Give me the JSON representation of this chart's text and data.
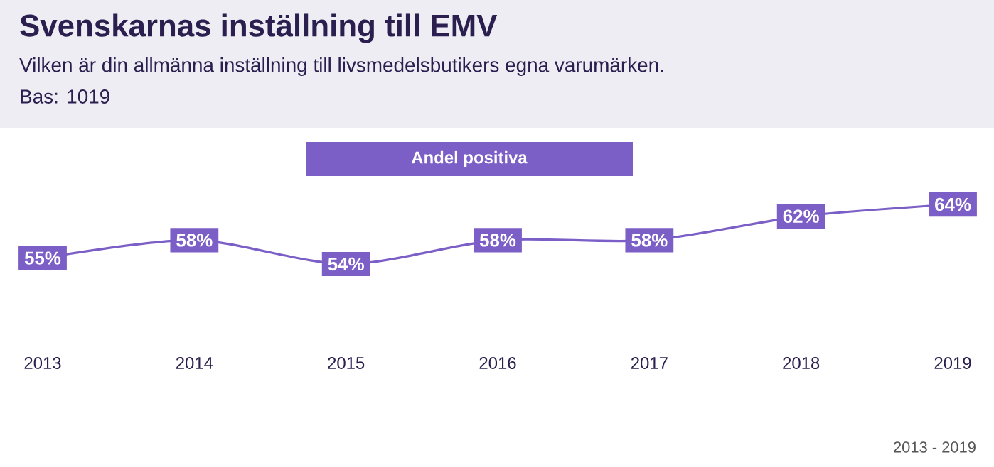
{
  "chart_data": {
    "type": "line",
    "title": "Svenskarnas inställning till EMV",
    "subtitle": "Vilken är din allmänna inställning till livsmedelsbutikers egna varumärken.",
    "annotations": [
      "Bas: 1019",
      "2013 - 2019"
    ],
    "categories": [
      "2013",
      "2014",
      "2015",
      "2016",
      "2017",
      "2018",
      "2019"
    ],
    "series": [
      {
        "name": "Andel positiva",
        "color": "#7b5ec6",
        "values": [
          55,
          58,
          54,
          58,
          58,
          62,
          64
        ],
        "value_labels": [
          "55%",
          "58%",
          "54%",
          "58%",
          "58%",
          "62%",
          "64%"
        ]
      }
    ],
    "legend": "top",
    "marker": "square",
    "line_style": "solid"
  }
}
